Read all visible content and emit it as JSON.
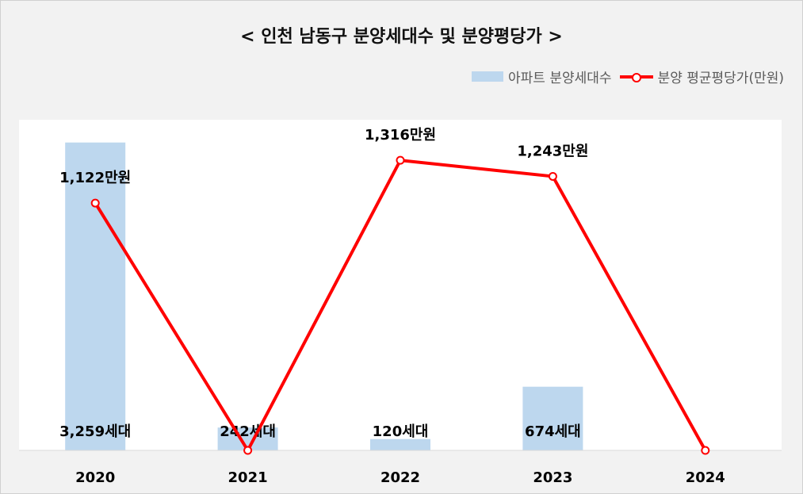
{
  "chart_data": {
    "type": "bar+line",
    "title": "< 인천 남동구 분양세대수 및 분양평당가 >",
    "categories": [
      "2020",
      "2021",
      "2022",
      "2023",
      "2024"
    ],
    "series": [
      {
        "name": "아파트 분양세대수",
        "type": "bar",
        "color": "#bdd7ee",
        "values": [
          3259,
          242,
          120,
          674,
          0
        ],
        "labels": [
          "3,259세대",
          "242세대",
          "120세대",
          "674세대",
          ""
        ]
      },
      {
        "name": "분양 평균평당가(만원)",
        "type": "line",
        "color": "#ff0000",
        "values": [
          1122,
          0,
          1316,
          1243,
          0
        ],
        "labels": [
          "1,122만원",
          "",
          "1,316만원",
          "1,243만원",
          ""
        ]
      }
    ],
    "bar_ylim": [
      0,
      3500
    ],
    "line_ylim": [
      0,
      1500
    ],
    "legend_position": "top-right",
    "grid": false
  }
}
